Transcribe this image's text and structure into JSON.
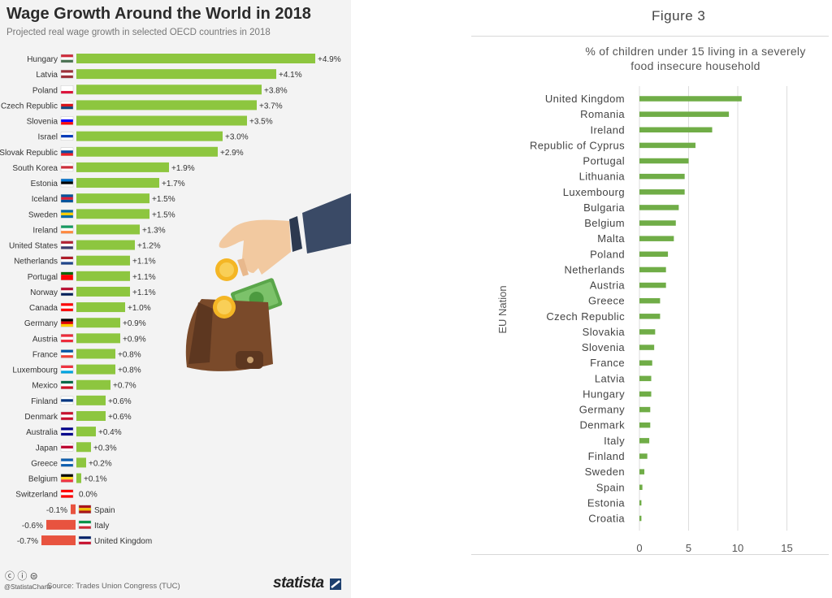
{
  "left_chart": {
    "title": "Wage Growth Around the World in 2018",
    "subtitle": "Projected real wage growth in selected OECD countries in 2018",
    "footer_handle": "@StatistaCharts",
    "footer_source": "Source: Trades Union Congress (TUC)",
    "footer_brand": "statista",
    "footer_icons": "ⓒ ⓘ ⊜",
    "colors": {
      "positive": "#8dc63f",
      "negative": "#e8533f",
      "zero_flag": "#e02020"
    }
  },
  "right_chart": {
    "figure_label": "Figure 3",
    "bar_color": "#70ad47"
  },
  "chart_data": [
    {
      "type": "bar",
      "orientation": "horizontal",
      "title": "Wage Growth Around the World in 2018",
      "subtitle": "Projected real wage growth in selected OECD countries in 2018",
      "categories": [
        "Hungary",
        "Latvia",
        "Poland",
        "Czech Republic",
        "Slovenia",
        "Israel",
        "Slovak Republic",
        "South Korea",
        "Estonia",
        "Iceland",
        "Sweden",
        "Ireland",
        "United States",
        "Netherlands",
        "Portugal",
        "Norway",
        "Canada",
        "Germany",
        "Austria",
        "France",
        "Luxembourg",
        "Mexico",
        "Finland",
        "Denmark",
        "Australia",
        "Japan",
        "Greece",
        "Belgium",
        "Switzerland",
        "Spain",
        "Italy",
        "United Kingdom"
      ],
      "values": [
        4.9,
        4.1,
        3.8,
        3.7,
        3.5,
        3.0,
        2.9,
        1.9,
        1.7,
        1.5,
        1.5,
        1.3,
        1.2,
        1.1,
        1.1,
        1.1,
        1.0,
        0.9,
        0.9,
        0.8,
        0.8,
        0.7,
        0.6,
        0.6,
        0.4,
        0.3,
        0.2,
        0.1,
        0.0,
        -0.1,
        -0.6,
        -0.7
      ],
      "value_labels": [
        "+4.9%",
        "+4.1%",
        "+3.8%",
        "+3.7%",
        "+3.5%",
        "+3.0%",
        "+2.9%",
        "+1.9%",
        "+1.7%",
        "+1.5%",
        "+1.5%",
        "+1.3%",
        "+1.2%",
        "+1.1%",
        "+1.1%",
        "+1.1%",
        "+1.0%",
        "+0.9%",
        "+0.9%",
        "+0.8%",
        "+0.8%",
        "+0.7%",
        "+0.6%",
        "+0.6%",
        "+0.4%",
        "+0.3%",
        "+0.2%",
        "+0.1%",
        "0.0%",
        "-0.1%",
        "-0.6%",
        "-0.7%"
      ],
      "flags": [
        [
          "#ce2939",
          "#ffffff",
          "#477050"
        ],
        [
          "#9e3039",
          "#ffffff",
          "#9e3039"
        ],
        [
          "#ffffff",
          "#ffffff",
          "#dc143c"
        ],
        [
          "#ffffff",
          "#d7141a",
          "#11457e"
        ],
        [
          "#ffffff",
          "#0000ff",
          "#ff0000"
        ],
        [
          "#ffffff",
          "#0038b8",
          "#ffffff"
        ],
        [
          "#ffffff",
          "#0b4ea2",
          "#ee1c25"
        ],
        [
          "#ffffff",
          "#cd2e3a",
          "#ffffff"
        ],
        [
          "#0072ce",
          "#000000",
          "#ffffff"
        ],
        [
          "#02529c",
          "#dc1e35",
          "#02529c"
        ],
        [
          "#006aa7",
          "#fecc00",
          "#006aa7"
        ],
        [
          "#169b62",
          "#ffffff",
          "#ff883e"
        ],
        [
          "#b22234",
          "#ffffff",
          "#3c3b6e"
        ],
        [
          "#ae1c28",
          "#ffffff",
          "#21468b"
        ],
        [
          "#006600",
          "#ff0000",
          "#ff0000"
        ],
        [
          "#ba0c2f",
          "#ffffff",
          "#00205b"
        ],
        [
          "#ff0000",
          "#ffffff",
          "#ff0000"
        ],
        [
          "#000000",
          "#dd0000",
          "#ffce00"
        ],
        [
          "#ed2939",
          "#ffffff",
          "#ed2939"
        ],
        [
          "#0055a4",
          "#ffffff",
          "#ef4135"
        ],
        [
          "#ef3340",
          "#ffffff",
          "#00a3e0"
        ],
        [
          "#006847",
          "#ffffff",
          "#ce1126"
        ],
        [
          "#ffffff",
          "#003580",
          "#ffffff"
        ],
        [
          "#c8102e",
          "#ffffff",
          "#c8102e"
        ],
        [
          "#00008b",
          "#ffffff",
          "#00008b"
        ],
        [
          "#ffffff",
          "#bc002d",
          "#ffffff"
        ],
        [
          "#0d5eaf",
          "#ffffff",
          "#0d5eaf"
        ],
        [
          "#000000",
          "#fdda24",
          "#ef3340"
        ],
        [
          "#ff0000",
          "#ffffff",
          "#ff0000"
        ],
        [
          "#aa151b",
          "#f1bf00",
          "#aa151b"
        ],
        [
          "#009246",
          "#ffffff",
          "#ce2b37"
        ],
        [
          "#012169",
          "#ffffff",
          "#c8102e"
        ]
      ],
      "xlim": [
        -0.8,
        5.0
      ]
    },
    {
      "type": "bar",
      "orientation": "horizontal",
      "title": "% of children under 15 living in a severely food insecure household",
      "ylabel": "EU Nation",
      "categories": [
        "United Kingdom",
        "Romania",
        "Ireland",
        "Republic of Cyprus",
        "Portugal",
        "Lithuania",
        "Luxembourg",
        "Bulgaria",
        "Belgium",
        "Malta",
        "Poland",
        "Netherlands",
        "Austria",
        "Greece",
        "Czech Republic",
        "Slovakia",
        "Slovenia",
        "France",
        "Latvia",
        "Hungary",
        "Germany",
        "Denmark",
        "Italy",
        "Finland",
        "Sweden",
        "Spain",
        "Estonia",
        "Croatia"
      ],
      "values": [
        10.4,
        9.1,
        7.4,
        5.7,
        5.0,
        4.6,
        4.6,
        4.0,
        3.7,
        3.5,
        2.9,
        2.7,
        2.7,
        2.1,
        2.1,
        1.6,
        1.5,
        1.3,
        1.2,
        1.2,
        1.1,
        1.1,
        1.0,
        0.8,
        0.5,
        0.3,
        0.2,
        0.2
      ],
      "xticks": [
        "0",
        "5",
        "10",
        "15"
      ],
      "xlim": [
        0,
        15
      ],
      "grid": true
    }
  ]
}
